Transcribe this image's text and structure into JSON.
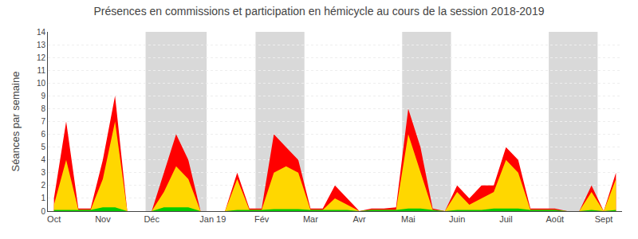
{
  "chart_data": {
    "type": "area",
    "title": "Présences en commissions et participation en hémicycle au cours de la session 2018-2019",
    "ylabel": "Séances par semaine",
    "categories": [
      "Oct",
      null,
      null,
      null,
      "Nov",
      null,
      null,
      null,
      "Déc",
      null,
      null,
      null,
      null,
      "Jan 19",
      null,
      null,
      null,
      "Fév",
      null,
      null,
      null,
      "Mar",
      null,
      null,
      null,
      "Avr",
      null,
      null,
      null,
      "Mai",
      null,
      null,
      null,
      "Juin",
      null,
      null,
      null,
      "Juil",
      null,
      null,
      null,
      "Août",
      null,
      null,
      null,
      "Sept",
      null
    ],
    "shaded_months": [
      "Déc",
      "Fév",
      "Mai",
      "Août"
    ],
    "series": [
      {
        "color": "#ff0000",
        "values": [
          1,
          7,
          0.2,
          0.2,
          4,
          9,
          0,
          0,
          0,
          3,
          6,
          4,
          0,
          0,
          0,
          3,
          0.2,
          0.2,
          6,
          5,
          4,
          0.2,
          0.2,
          2,
          1,
          0,
          0.2,
          0.2,
          0.3,
          8,
          5,
          0.2,
          0,
          2,
          1,
          2,
          2,
          5,
          4,
          0.2,
          0.2,
          0.2,
          0,
          0,
          2,
          0,
          3
        ]
      },
      {
        "color": "#ffd700",
        "values": [
          0.5,
          4,
          0.1,
          0.1,
          2.5,
          7,
          0,
          0,
          0,
          1.5,
          3.5,
          2.5,
          0,
          0,
          0,
          2.5,
          0.1,
          0.1,
          3,
          3.5,
          3,
          0.1,
          0.1,
          1,
          0.5,
          0,
          0.1,
          0.1,
          0.1,
          6,
          3,
          0.1,
          0,
          1.5,
          0.5,
          1,
          1.5,
          4,
          3,
          0.1,
          0.1,
          0.1,
          0,
          0,
          1.5,
          0,
          2.5
        ]
      },
      {
        "color": "#00cc00",
        "values": [
          0.1,
          0.1,
          0.1,
          0.1,
          0.3,
          0.3,
          0,
          0,
          0,
          0.3,
          0.3,
          0.3,
          0,
          0,
          0,
          0.1,
          0.1,
          0.1,
          0.15,
          0.15,
          0.15,
          0.1,
          0.1,
          0.1,
          0.1,
          0,
          0.1,
          0.1,
          0.1,
          0.2,
          0.2,
          0.1,
          0,
          0.1,
          0.1,
          0.1,
          0.2,
          0.2,
          0.2,
          0.1,
          0.1,
          0.1,
          0,
          0,
          0.1,
          0,
          0.1
        ]
      }
    ],
    "ylim": [
      0,
      14
    ],
    "yticks": [
      0,
      1,
      2,
      3,
      4,
      5,
      6,
      7,
      8,
      9,
      10,
      11,
      12,
      13,
      14
    ],
    "grid": true
  }
}
